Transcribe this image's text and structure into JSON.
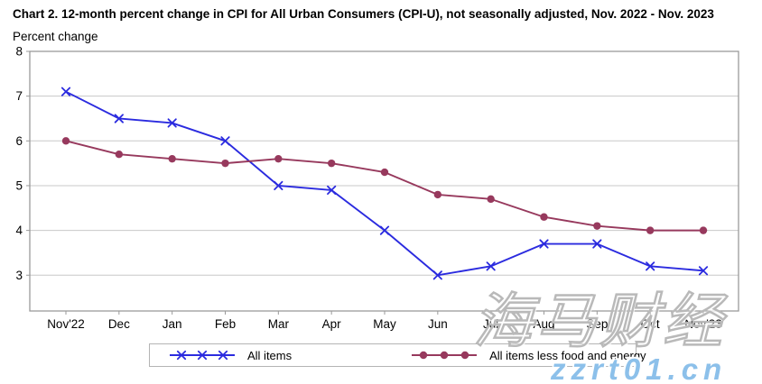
{
  "chart_data": {
    "type": "line",
    "title": "Chart 2. 12-month percent change in CPI for All Urban Consumers (CPI-U), not seasonally adjusted, Nov. 2022 - Nov. 2023",
    "ylabel": "Percent change",
    "xlabel": "",
    "categories": [
      "Nov'22",
      "Dec",
      "Jan",
      "Feb",
      "Mar",
      "Apr",
      "May",
      "Jun",
      "Jul",
      "Aug",
      "Sep",
      "Oct",
      "Nov'23"
    ],
    "series": [
      {
        "name": "All items",
        "color": "#2b2bdf",
        "marker": "x",
        "values": [
          7.1,
          6.5,
          6.4,
          6.0,
          5.0,
          4.9,
          4.0,
          3.0,
          3.2,
          3.7,
          3.7,
          3.2,
          3.1
        ]
      },
      {
        "name": "All items less food and energy",
        "color": "#97395d",
        "marker": "dot",
        "values": [
          6.0,
          5.7,
          5.6,
          5.5,
          5.6,
          5.5,
          5.3,
          4.8,
          4.7,
          4.3,
          4.1,
          4.0,
          4.0
        ]
      }
    ],
    "ylim": [
      2.2,
      8
    ],
    "yticks": [
      8,
      7,
      6,
      5,
      4,
      3
    ],
    "grid": true,
    "legend_position": "bottom"
  },
  "watermark": {
    "text_cjk": "海马财经",
    "text_url": "zzrt01.cn",
    "url_color": "#8cc0ea"
  },
  "style": {
    "grid_color": "#c8c8c8",
    "axis_color": "#9a9a9a",
    "text_color": "#000000"
  }
}
